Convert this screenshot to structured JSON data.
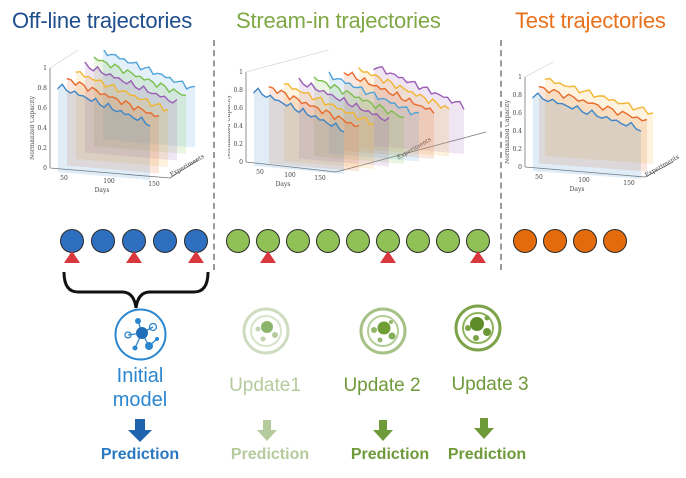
{
  "colors": {
    "offline": "#1f4e8c",
    "offline_node": "#2f6fc0",
    "stream": "#7fa845",
    "stream_node": "#8fc156",
    "test": "#e8711c",
    "test_node": "#e36b0c",
    "triangle": "#d9363e",
    "update1": "#a9c48a",
    "update2": "#6f9a3a",
    "update3": "#6f9a3a",
    "prediction_initial": "#2a77c2"
  },
  "sections": {
    "offline_title": "Off-line trajectories",
    "stream_title": "Stream-in trajectories",
    "test_title": "Test trajectories"
  },
  "plots": {
    "ylabel": "Normalized Capacity",
    "xlabel": "Days",
    "zlabel": "Experiments",
    "yticks": [
      "1",
      "0.8",
      "0.6",
      "0.4",
      "0.2",
      "0"
    ],
    "xticks": [
      "50",
      "100",
      "150"
    ]
  },
  "nodes": {
    "offline_count": 5,
    "stream_count": 9,
    "test_count": 4,
    "offline_triangles": [
      0,
      2,
      4
    ],
    "stream_triangles": [
      1,
      5,
      8
    ]
  },
  "models": {
    "initial_line1": "Initial",
    "initial_line2": "model",
    "update1": "Update1",
    "update2": "Update 2",
    "update3": "Update 3"
  },
  "predictions": {
    "initial": "Prediction",
    "update1": "Prediction",
    "update2": "Prediction",
    "update3": "Prediction"
  },
  "icons": [
    "network-model-icon",
    "down-arrow-icon",
    "bracket-icon",
    "triangle-marker-icon"
  ]
}
